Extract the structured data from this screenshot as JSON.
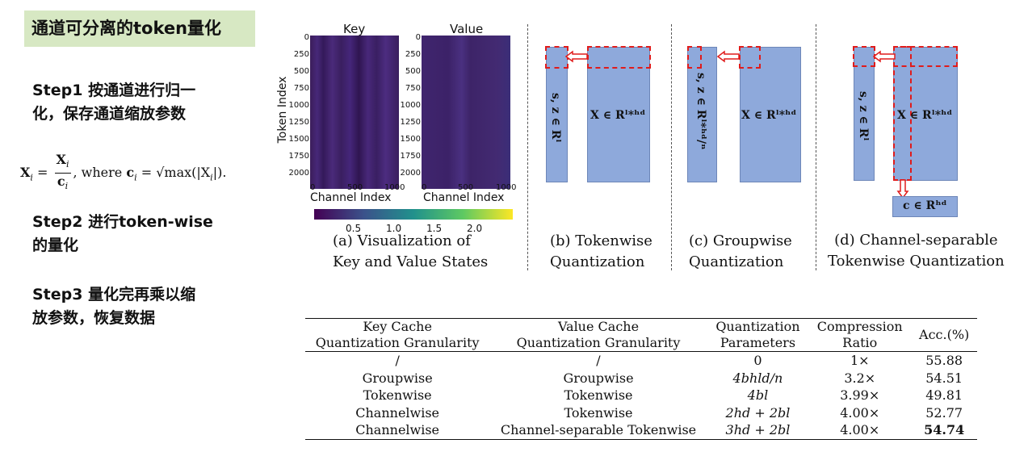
{
  "left": {
    "title": "通道可分离的token量化",
    "step1_line1": "Step1 按通道进行归一",
    "step1_line2": "化，保存通道缩放参数",
    "formula_lhs": "X",
    "formula_sub": "i",
    "formula_eq": "=",
    "formula_num": "X",
    "formula_den": "c",
    "formula_where": ", where ",
    "formula_ci": "c",
    "formula_rhs": "= √max(|X",
    "formula_end": "|).",
    "step2_line1": "Step2 进行token-wise",
    "step2_line2": "的量化",
    "step3_line1": "Step3 量化完再乘以缩",
    "step3_line2": "放参数，恢复数据"
  },
  "heatmaps": {
    "key_title": "Key",
    "value_title": "Value",
    "y_label": "Token Index",
    "x_label": "Channel Index",
    "y_ticks": [
      "0",
      "250",
      "500",
      "750",
      "1000",
      "1250",
      "1500",
      "1750",
      "2000"
    ],
    "x_ticks": [
      "0",
      "500",
      "1000"
    ],
    "colorbar_ticks": [
      "0.5",
      "1.0",
      "1.5",
      "2.0"
    ],
    "caption_line1": "(a) Visualization of",
    "caption_line2": "Key and Value States"
  },
  "panel_b": {
    "vert_label": "s, z ∈ Rˡ",
    "matrix_label": "X ∈ Rˡ*ʰᵈ",
    "caption_line1": "(b) Tokenwise",
    "caption_line2": "Quantization"
  },
  "panel_c": {
    "vert_label": "s, z ∈ Rˡ*ʰᵈ/ⁿ",
    "matrix_label": "X ∈ Rˡ*ʰᵈ",
    "caption_line1": "(c) Groupwise",
    "caption_line2": "Quantization"
  },
  "panel_d": {
    "vert_label": "s, z ∈ Rˡ",
    "matrix_label": "X ∈ Rˡ*ʰᵈ",
    "c_label": "c ∈ Rʰᵈ",
    "caption_line1": "(d) Channel-separable",
    "caption_line2": "Tokenwise Quantization"
  },
  "table": {
    "headers": [
      [
        "Key Cache",
        "Quantization Granularity"
      ],
      [
        "Value Cache",
        "Quantization Granularity"
      ],
      [
        "Quantization",
        "Parameters"
      ],
      [
        "Compression",
        "Ratio"
      ],
      [
        "Acc.(%)",
        ""
      ]
    ],
    "rows": [
      [
        "/",
        "/",
        "0",
        "1×",
        "55.88"
      ],
      [
        "Groupwise",
        "Groupwise",
        "4bhld/n",
        "3.2×",
        "54.51"
      ],
      [
        "Tokenwise",
        "Tokenwise",
        "4bl",
        "3.99×",
        "49.81"
      ],
      [
        "Channelwise",
        "Tokenwise",
        "2hd + 2bl",
        "4.00×",
        "52.77"
      ],
      [
        "Channelwise",
        "Channel-separable Tokenwise",
        "3hd + 2bl",
        "4.00×",
        "54.74"
      ]
    ]
  },
  "colors": {
    "title_bg": "#d7e8c3",
    "block_blue": "#8ea9db",
    "dash_red": "#e01b1b"
  }
}
